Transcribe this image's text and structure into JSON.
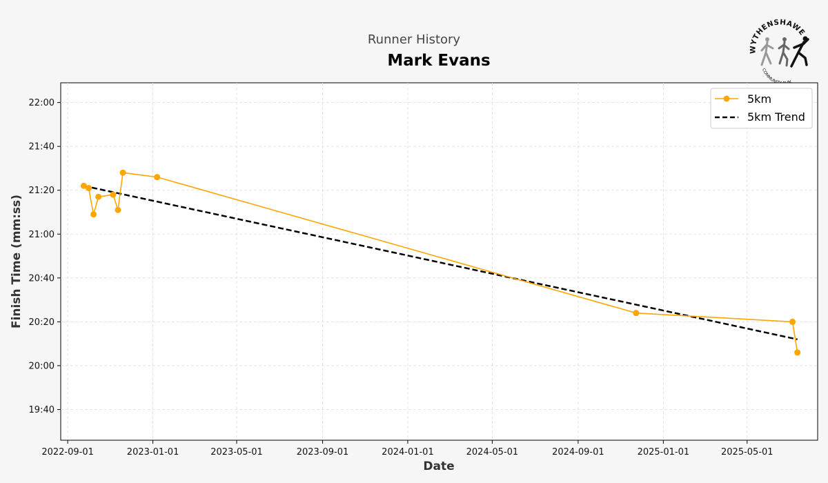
{
  "header": {
    "supertitle": "Runner History",
    "title": "Mark Evans"
  },
  "logo": {
    "top_text": "WYTHENSHAWE",
    "bottom_text": "COMMUNITY RUN"
  },
  "colors": {
    "series": "#FFA500",
    "trend": "#000000",
    "background": "#f6f6f6",
    "plot_background": "#ffffff",
    "grid": "#dddddd"
  },
  "chart_data": {
    "type": "line",
    "title": "Mark Evans",
    "subtitle": "Runner History",
    "xlabel": "Date",
    "ylabel": "Finish Time (mm:ss)",
    "x_ticks": [
      "2022-09-01",
      "2023-01-01",
      "2023-05-01",
      "2023-09-01",
      "2024-01-01",
      "2024-05-01",
      "2024-09-01",
      "2025-01-01",
      "2025-05-01"
    ],
    "y_ticks": [
      "19:40",
      "20:00",
      "20:20",
      "20:40",
      "21:00",
      "21:20",
      "21:40",
      "22:00"
    ],
    "xlim": [
      "2022-08-22",
      "2025-08-10"
    ],
    "ylim": [
      "19:26",
      "22:09"
    ],
    "grid": true,
    "legend_position": "top-right",
    "series": [
      {
        "name": "5km",
        "style": "line-with-markers",
        "color": "#FFA500",
        "points": [
          {
            "x": "2022-09-24",
            "y": "21:22"
          },
          {
            "x": "2022-10-01",
            "y": "21:21"
          },
          {
            "x": "2022-10-08",
            "y": "21:09"
          },
          {
            "x": "2022-10-15",
            "y": "21:17"
          },
          {
            "x": "2022-11-05",
            "y": "21:18"
          },
          {
            "x": "2022-11-12",
            "y": "21:11"
          },
          {
            "x": "2022-11-19",
            "y": "21:28"
          },
          {
            "x": "2023-01-07",
            "y": "21:26"
          },
          {
            "x": "2024-11-23",
            "y": "20:24"
          },
          {
            "x": "2025-07-05",
            "y": "20:20"
          },
          {
            "x": "2025-07-12",
            "y": "20:06"
          }
        ]
      },
      {
        "name": "5km Trend",
        "style": "dashed",
        "color": "#000000",
        "points": [
          {
            "x": "2022-09-24",
            "y": "21:22"
          },
          {
            "x": "2025-07-12",
            "y": "20:12"
          }
        ]
      }
    ]
  }
}
